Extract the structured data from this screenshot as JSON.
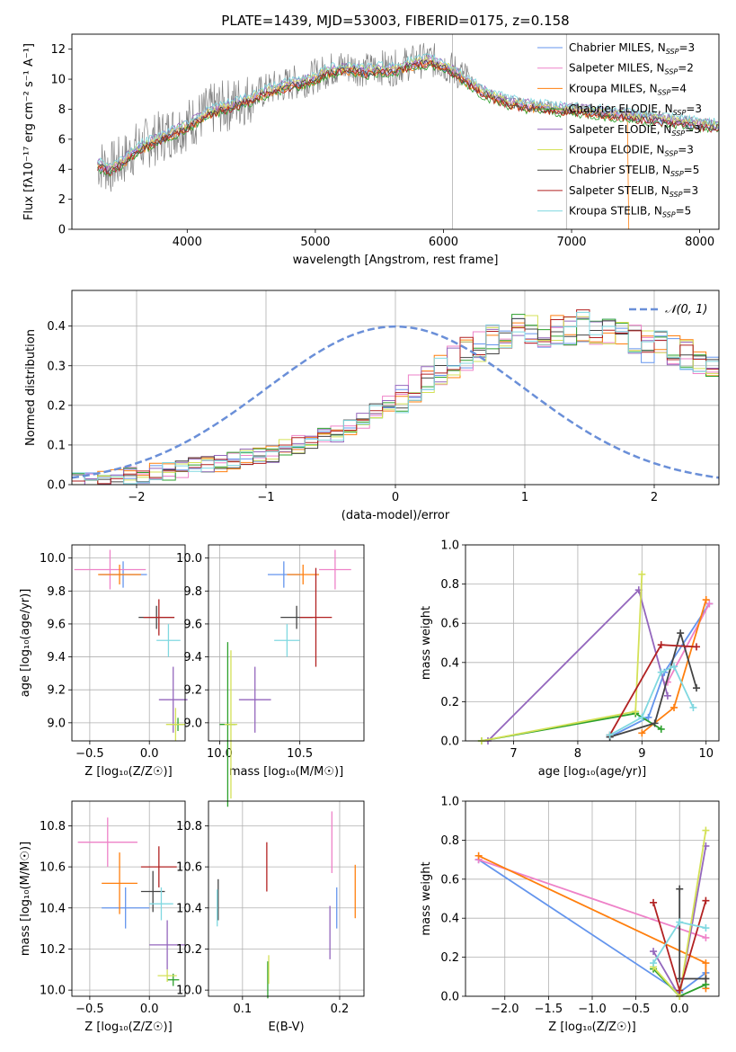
{
  "figure": {
    "title": "PLATE=1439, MJD=53003, FIBERID=0175, z=0.158"
  },
  "chart_data": [
    {
      "id": "spectrum",
      "type": "line",
      "xlabel": "wavelength [Angstrom, rest frame]",
      "ylabel": "Flux [fλ10⁻¹⁷ erg cm⁻² s⁻¹ A⁻¹]",
      "xlim": [
        3100,
        8150
      ],
      "ylim": [
        0,
        13
      ],
      "xticks": [
        4000,
        5000,
        6000,
        7000,
        8000
      ],
      "yticks": [
        0,
        2,
        4,
        6,
        8,
        10,
        12
      ],
      "grid": "vertical lines at 6070 and 6960",
      "legend_position": "top-right",
      "observed": {
        "color": "#808080",
        "anchor_x": [
          3300,
          3400,
          3500,
          3600,
          3700,
          3800,
          3900,
          4000,
          4100,
          4200,
          4300,
          4400,
          4500,
          4600,
          4700,
          4800,
          4900,
          5000,
          5100,
          5200,
          5300,
          5400,
          5500,
          5600,
          5700,
          5800,
          5900,
          6000,
          6100,
          6200,
          6300,
          6400,
          6500,
          6600,
          6700,
          6800,
          6900,
          7000,
          7100,
          7200,
          7300,
          7400,
          7500,
          7600,
          7700,
          7800,
          7900,
          8000,
          8100
        ],
        "anchor_y": [
          4.4,
          4.1,
          4.6,
          5.4,
          5.8,
          6.2,
          6.6,
          7.0,
          7.5,
          8.0,
          8.2,
          8.5,
          8.8,
          9.2,
          9.5,
          9.7,
          9.9,
          10.2,
          10.6,
          10.8,
          10.8,
          10.6,
          10.8,
          10.7,
          11.0,
          11.2,
          11.3,
          11.0,
          10.5,
          9.9,
          9.3,
          8.9,
          8.6,
          8.4,
          8.3,
          8.2,
          8.1,
          8.1,
          8.0,
          7.9,
          7.8,
          7.7,
          7.6,
          7.5,
          7.4,
          7.3,
          7.2,
          7.1,
          7.0
        ]
      },
      "series": [
        {
          "name": "Chabrier MILES, N_SSP=3",
          "color": "#6495ed",
          "start": 3300,
          "offset": -0.2,
          "drop_at": null
        },
        {
          "name": "Salpeter MILES, N_SSP=2",
          "color": "#ee82c8",
          "start": 3300,
          "offset": -0.1,
          "drop_at": null
        },
        {
          "name": "Kroupa MILES, N_SSP=4",
          "color": "#ff7f0e",
          "start": 3500,
          "offset": -0.3,
          "drop_at": 7440
        },
        {
          "name": "Chabrier ELODIE, N_SSP=3",
          "color": "#2ca02c",
          "start": 3300,
          "offset": -0.4,
          "drop_at": null
        },
        {
          "name": "Salpeter ELODIE, N_SSP=3",
          "color": "#9467bd",
          "start": 3300,
          "offset": 0.1,
          "drop_at": null
        },
        {
          "name": "Kroupa ELODIE, N_SSP=3",
          "color": "#d4e157",
          "start": 3300,
          "offset": 0.0,
          "drop_at": null
        },
        {
          "name": "Chabrier STELIB, N_SSP=5",
          "color": "#444444",
          "start": 3300,
          "offset": -0.2,
          "drop_at": null
        },
        {
          "name": "Salpeter STELIB, N_SSP=3",
          "color": "#b22222",
          "start": 3300,
          "offset": -0.3,
          "drop_at": null
        },
        {
          "name": "Kroupa STELIB, N_SSP=5",
          "color": "#80d8e0",
          "start": 3300,
          "offset": 0.2,
          "drop_at": null
        }
      ],
      "legend_labels": [
        {
          "text": "Chabrier MILES, N",
          "sub": "SSP",
          "tail": "=3"
        },
        {
          "text": "Salpeter MILES, N",
          "sub": "SSP",
          "tail": "=2"
        },
        {
          "text": "Kroupa MILES, N",
          "sub": "SSP",
          "tail": "=4"
        },
        {
          "text": "Chabrier ELODIE, N",
          "sub": "SSP",
          "tail": "=3"
        },
        {
          "text": "Salpeter ELODIE, N",
          "sub": "SSP",
          "tail": "=3"
        },
        {
          "text": "Kroupa ELODIE, N",
          "sub": "SSP",
          "tail": "=3"
        },
        {
          "text": "Chabrier STELIB, N",
          "sub": "SSP",
          "tail": "=5"
        },
        {
          "text": "Salpeter STELIB, N",
          "sub": "SSP",
          "tail": "=3"
        },
        {
          "text": "Kroupa STELIB, N",
          "sub": "SSP",
          "tail": "=5"
        }
      ]
    },
    {
      "id": "residuals",
      "type": "area",
      "xlabel": "(data-model)/error",
      "ylabel": "Normed distribution",
      "xlim": [
        -2.5,
        2.5
      ],
      "ylim": [
        0,
        0.49
      ],
      "xticks": [
        -2,
        -1,
        0,
        1,
        2
      ],
      "yticks": [
        0.0,
        0.1,
        0.2,
        0.3,
        0.4
      ],
      "grid": true,
      "legend_position": "top-right",
      "gaussian": {
        "name": "𝒩(0, 1)",
        "color": "#6a8fd8",
        "mean": 0,
        "sigma": 1
      },
      "bin_edges_start": -2.5,
      "bin_width": 0.1,
      "hist_envelope": [
        0.01,
        0.01,
        0.015,
        0.02,
        0.02,
        0.025,
        0.03,
        0.035,
        0.04,
        0.045,
        0.05,
        0.055,
        0.06,
        0.07,
        0.075,
        0.08,
        0.09,
        0.1,
        0.11,
        0.12,
        0.13,
        0.15,
        0.16,
        0.18,
        0.2,
        0.22,
        0.24,
        0.27,
        0.29,
        0.31,
        0.33,
        0.35,
        0.37,
        0.38,
        0.39,
        0.39,
        0.38,
        0.39,
        0.39,
        0.4,
        0.38,
        0.39,
        0.37,
        0.37,
        0.35,
        0.35,
        0.34,
        0.33,
        0.32,
        0.31,
        0.3,
        0.28,
        0.27,
        0.26,
        0.24,
        0.23,
        0.22,
        0.2,
        0.19,
        0.17,
        0.16,
        0.15,
        0.14,
        0.13,
        0.12,
        0.12,
        0.11,
        0.1,
        0.1,
        0.09,
        0.09,
        0.08,
        0.08,
        0.07,
        0.07,
        0.06,
        0.06,
        0.06,
        0.05,
        0.05
      ]
    },
    {
      "id": "age-vs-Z",
      "type": "scatter",
      "xlabel": "Z [log₁₀(Z/Z☉)]",
      "ylabel": "age  [log₁₀(age/yr)]",
      "xlim": [
        -0.65,
        0.3
      ],
      "ylim": [
        8.89,
        10.08
      ],
      "xticks": [
        -0.5,
        0.0
      ],
      "yticks": [
        9.0,
        9.2,
        9.4,
        9.6,
        9.8,
        10.0
      ],
      "grid": true,
      "points": [
        {
          "color": "#6495ed",
          "x": -0.22,
          "y": 9.9,
          "xerr": 0.2,
          "yerr": 0.08
        },
        {
          "color": "#ee82c8",
          "x": -0.33,
          "y": 9.93,
          "xerr": 0.3,
          "yerr": 0.12
        },
        {
          "color": "#ff7f0e",
          "x": -0.25,
          "y": 9.9,
          "xerr": 0.18,
          "yerr": 0.06
        },
        {
          "color": "#2ca02c",
          "x": 0.24,
          "y": 8.99,
          "xerr": 0.06,
          "yerr": 0.04
        },
        {
          "color": "#9467bd",
          "x": 0.2,
          "y": 9.14,
          "xerr": 0.12,
          "yerr": 0.2
        },
        {
          "color": "#d4e157",
          "x": 0.22,
          "y": 8.99,
          "xerr": 0.08,
          "yerr": 0.1
        },
        {
          "color": "#444444",
          "x": 0.06,
          "y": 9.64,
          "xerr": 0.15,
          "yerr": 0.07
        },
        {
          "color": "#b22222",
          "x": 0.08,
          "y": 9.64,
          "xerr": 0.13,
          "yerr": 0.11
        },
        {
          "color": "#80d8e0",
          "x": 0.16,
          "y": 9.5,
          "xerr": 0.1,
          "yerr": 0.1
        }
      ]
    },
    {
      "id": "age-vs-mass",
      "type": "scatter",
      "xlabel": "mass [log₁₀(M/M☉)]",
      "ylabel": "",
      "xlim": [
        9.93,
        10.9
      ],
      "ylim": [
        8.89,
        10.08
      ],
      "xticks": [
        10.0,
        10.5
      ],
      "yticks": [
        9.0,
        9.2,
        9.4,
        9.6,
        9.8,
        10.0
      ],
      "grid": true,
      "points": [
        {
          "color": "#6495ed",
          "x": 10.4,
          "y": 9.9,
          "xerr": 0.1,
          "yerr": 0.08
        },
        {
          "color": "#ee82c8",
          "x": 10.72,
          "y": 9.93,
          "xerr": 0.1,
          "yerr": 0.12
        },
        {
          "color": "#ff7f0e",
          "x": 10.52,
          "y": 9.9,
          "xerr": 0.1,
          "yerr": 0.06
        },
        {
          "color": "#2ca02c",
          "x": 10.05,
          "y": 8.99,
          "xerr": 0.05,
          "yerr": 0.5
        },
        {
          "color": "#9467bd",
          "x": 10.22,
          "y": 9.14,
          "xerr": 0.1,
          "yerr": 0.2
        },
        {
          "color": "#d4e157",
          "x": 10.07,
          "y": 8.99,
          "xerr": 0.04,
          "yerr": 0.45
        },
        {
          "color": "#444444",
          "x": 10.48,
          "y": 9.64,
          "xerr": 0.1,
          "yerr": 0.07
        },
        {
          "color": "#b22222",
          "x": 10.6,
          "y": 9.64,
          "xerr": 0.1,
          "yerr": 0.3
        },
        {
          "color": "#80d8e0",
          "x": 10.42,
          "y": 9.5,
          "xerr": 0.08,
          "yerr": 0.1
        }
      ]
    },
    {
      "id": "weight-vs-age",
      "type": "line",
      "xlabel": "age  [log₁₀(age/yr)]",
      "ylabel": "mass weight",
      "xlim": [
        6.25,
        10.2
      ],
      "ylim": [
        0,
        1
      ],
      "xticks": [
        7,
        8,
        9,
        10
      ],
      "yticks": [
        0.0,
        0.2,
        0.4,
        0.6,
        0.8,
        1.0
      ],
      "grid": true,
      "series": [
        {
          "color": "#6495ed",
          "x": [
            8.5,
            9.1,
            9.35,
            10.05
          ],
          "y": [
            0.02,
            0.12,
            0.35,
            0.7
          ]
        },
        {
          "color": "#ee82c8",
          "x": [
            9.4,
            10.05
          ],
          "y": [
            0.3,
            0.7
          ]
        },
        {
          "color": "#ff7f0e",
          "x": [
            9.0,
            9.5,
            10.0
          ],
          "y": [
            0.04,
            0.17,
            0.72
          ]
        },
        {
          "color": "#2ca02c",
          "x": [
            6.5,
            8.9,
            9.3
          ],
          "y": [
            0.0,
            0.14,
            0.06
          ]
        },
        {
          "color": "#9467bd",
          "x": [
            6.6,
            8.95,
            9.4
          ],
          "y": [
            0.0,
            0.77,
            0.23
          ]
        },
        {
          "color": "#d4e157",
          "x": [
            6.5,
            8.9,
            9.0
          ],
          "y": [
            0.0,
            0.15,
            0.85
          ]
        },
        {
          "color": "#444444",
          "x": [
            8.5,
            9.2,
            9.6,
            9.85
          ],
          "y": [
            0.02,
            0.09,
            0.55,
            0.27
          ]
        },
        {
          "color": "#b22222",
          "x": [
            8.5,
            9.3,
            9.85
          ],
          "y": [
            0.03,
            0.49,
            0.48
          ]
        },
        {
          "color": "#80d8e0",
          "x": [
            8.5,
            9.0,
            9.3,
            9.5,
            9.8
          ],
          "y": [
            0.03,
            0.12,
            0.35,
            0.38,
            0.17
          ]
        }
      ]
    },
    {
      "id": "mass-vs-Z",
      "type": "scatter",
      "xlabel": "Z [log₁₀(Z/Z☉)]",
      "ylabel": "mass [log₁₀(M/M☉)]",
      "xlim": [
        -0.65,
        0.3
      ],
      "ylim": [
        9.97,
        10.92
      ],
      "xticks": [
        -0.5,
        0.0
      ],
      "yticks": [
        10.0,
        10.2,
        10.4,
        10.6,
        10.8
      ],
      "grid": true,
      "points": [
        {
          "color": "#6495ed",
          "x": -0.2,
          "y": 10.4,
          "xerr": 0.2,
          "yerr": 0.1
        },
        {
          "color": "#ee82c8",
          "x": -0.35,
          "y": 10.72,
          "xerr": 0.25,
          "yerr": 0.12
        },
        {
          "color": "#ff7f0e",
          "x": -0.25,
          "y": 10.52,
          "xerr": 0.15,
          "yerr": 0.15
        },
        {
          "color": "#2ca02c",
          "x": 0.2,
          "y": 10.05,
          "xerr": 0.05,
          "yerr": 0.03
        },
        {
          "color": "#9467bd",
          "x": 0.15,
          "y": 10.22,
          "xerr": 0.15,
          "yerr": 0.12
        },
        {
          "color": "#d4e157",
          "x": 0.15,
          "y": 10.07,
          "xerr": 0.08,
          "yerr": 0.03
        },
        {
          "color": "#444444",
          "x": 0.03,
          "y": 10.48,
          "xerr": 0.1,
          "yerr": 0.1
        },
        {
          "color": "#b22222",
          "x": 0.08,
          "y": 10.6,
          "xerr": 0.15,
          "yerr": 0.1
        },
        {
          "color": "#80d8e0",
          "x": 0.1,
          "y": 10.42,
          "xerr": 0.1,
          "yerr": 0.08
        }
      ]
    },
    {
      "id": "mass-vs-ebv",
      "type": "scatter",
      "xlabel": "E(B-V)",
      "ylabel": "",
      "xlim": [
        0.065,
        0.225
      ],
      "ylim": [
        9.97,
        10.92
      ],
      "xticks": [
        0.1,
        0.2
      ],
      "yticks": [
        10.0,
        10.2,
        10.4,
        10.6,
        10.8
      ],
      "grid": true,
      "points": [
        {
          "color": "#6495ed",
          "x": 0.197,
          "y": 10.4,
          "xerr": 0,
          "yerr": 0.1
        },
        {
          "color": "#ee82c8",
          "x": 0.192,
          "y": 10.72,
          "xerr": 0,
          "yerr": 0.15
        },
        {
          "color": "#ff7f0e",
          "x": 0.216,
          "y": 10.48,
          "xerr": 0,
          "yerr": 0.13
        },
        {
          "color": "#2ca02c",
          "x": 0.126,
          "y": 10.05,
          "xerr": 0,
          "yerr": 0.09
        },
        {
          "color": "#9467bd",
          "x": 0.19,
          "y": 10.28,
          "xerr": 0,
          "yerr": 0.13
        },
        {
          "color": "#d4e157",
          "x": 0.127,
          "y": 10.1,
          "xerr": 0,
          "yerr": 0.07
        },
        {
          "color": "#444444",
          "x": 0.075,
          "y": 10.44,
          "xerr": 0,
          "yerr": 0.1
        },
        {
          "color": "#b22222",
          "x": 0.125,
          "y": 10.6,
          "xerr": 0,
          "yerr": 0.12
        },
        {
          "color": "#80d8e0",
          "x": 0.074,
          "y": 10.4,
          "xerr": 0,
          "yerr": 0.09
        }
      ]
    },
    {
      "id": "weight-vs-Z",
      "type": "line",
      "xlabel": "Z [log₁₀(Z/Z☉)]",
      "ylabel": "mass weight",
      "xlim": [
        -2.45,
        0.45
      ],
      "ylim": [
        0,
        1
      ],
      "xticks": [
        -2.0,
        -1.5,
        -1.0,
        -0.5,
        0.0
      ],
      "xtick_labels": [
        "−2.0",
        "−1.5",
        "−1.0",
        "−0.5",
        "0.0"
      ],
      "yticks": [
        0.0,
        0.2,
        0.4,
        0.6,
        0.8,
        1.0
      ],
      "grid": true,
      "series": [
        {
          "color": "#6495ed",
          "x": [
            -2.3,
            0.0,
            0.3
          ],
          "y": [
            0.7,
            0.02,
            0.12
          ]
        },
        {
          "color": "#ee82c8",
          "x": [
            -2.3,
            0.3
          ],
          "y": [
            0.7,
            0.3
          ]
        },
        {
          "color": "#ff7f0e",
          "x": [
            -2.3,
            0.3,
            0.3
          ],
          "y": [
            0.72,
            0.17,
            0.04
          ]
        },
        {
          "color": "#2ca02c",
          "x": [
            -0.3,
            0.0,
            0.3
          ],
          "y": [
            0.14,
            0.0,
            0.06
          ]
        },
        {
          "color": "#9467bd",
          "x": [
            -0.3,
            0.0,
            0.3
          ],
          "y": [
            0.23,
            0.0,
            0.77
          ]
        },
        {
          "color": "#d4e157",
          "x": [
            -0.3,
            0.0,
            0.3
          ],
          "y": [
            0.15,
            0.0,
            0.85
          ]
        },
        {
          "color": "#444444",
          "x": [
            0.0,
            0.0,
            0.3
          ],
          "y": [
            0.55,
            0.09,
            0.09
          ]
        },
        {
          "color": "#b22222",
          "x": [
            -0.3,
            0.0,
            0.3
          ],
          "y": [
            0.48,
            0.03,
            0.49
          ]
        },
        {
          "color": "#80d8e0",
          "x": [
            -0.3,
            0.0,
            0.3
          ],
          "y": [
            0.17,
            0.38,
            0.35
          ]
        }
      ]
    }
  ]
}
